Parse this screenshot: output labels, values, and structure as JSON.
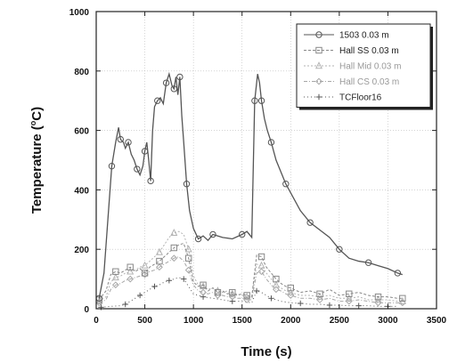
{
  "chart_data": {
    "type": "line",
    "xlabel": "Time (s)",
    "ylabel": "Temperature (",
    "ylabel_sup": "o",
    "ylabel_unit": "C)",
    "xlim": [
      0,
      3500
    ],
    "ylim": [
      0,
      1000
    ],
    "xticks": [
      0,
      500,
      1000,
      1500,
      2000,
      2500,
      3000,
      3500
    ],
    "yticks": [
      0,
      200,
      400,
      600,
      800,
      1000
    ],
    "grid": true,
    "legend_position": "top-right",
    "series": [
      {
        "name": "1503 0.03 m",
        "color": "#555555",
        "marker": "circle",
        "x": [
          30,
          80,
          120,
          160,
          200,
          230,
          250,
          280,
          300,
          330,
          360,
          390,
          420,
          450,
          480,
          500,
          520,
          540,
          560,
          580,
          600,
          630,
          660,
          690,
          720,
          750,
          780,
          800,
          820,
          840,
          860,
          880,
          900,
          930,
          960,
          1000,
          1050,
          1100,
          1150,
          1200,
          1300,
          1400,
          1500,
          1550,
          1600,
          1630,
          1660,
          1680,
          1700,
          1730,
          1760,
          1800,
          1850,
          1900,
          1950,
          2000,
          2100,
          2200,
          2300,
          2400,
          2500,
          2600,
          2700,
          2800,
          2900,
          3000,
          3100,
          3150
        ],
        "values": [
          35,
          120,
          300,
          480,
          560,
          610,
          570,
          560,
          540,
          560,
          520,
          500,
          470,
          450,
          480,
          530,
          560,
          500,
          430,
          600,
          680,
          700,
          710,
          690,
          760,
          790,
          750,
          740,
          780,
          720,
          780,
          650,
          560,
          420,
          330,
          270,
          235,
          245,
          230,
          250,
          240,
          235,
          250,
          260,
          240,
          700,
          790,
          760,
          700,
          640,
          600,
          560,
          500,
          460,
          420,
          390,
          330,
          290,
          265,
          240,
          200,
          170,
          160,
          155,
          145,
          135,
          120,
          115
        ]
      },
      {
        "name": "Hall SS 0.03 m",
        "color": "#888888",
        "marker": "square",
        "x": [
          30,
          100,
          150,
          200,
          250,
          300,
          350,
          400,
          450,
          500,
          550,
          600,
          650,
          700,
          750,
          800,
          850,
          900,
          950,
          1000,
          1050,
          1100,
          1150,
          1200,
          1250,
          1300,
          1350,
          1400,
          1450,
          1500,
          1550,
          1600,
          1650,
          1700,
          1750,
          1800,
          1850,
          1900,
          1950,
          2000,
          2100,
          2200,
          2300,
          2400,
          2500,
          2600,
          2700,
          2800,
          2900,
          3000,
          3100,
          3150
        ],
        "values": [
          30,
          60,
          115,
          125,
          120,
          130,
          140,
          125,
          135,
          120,
          140,
          150,
          160,
          175,
          190,
          205,
          215,
          220,
          170,
          90,
          75,
          80,
          60,
          70,
          55,
          60,
          50,
          55,
          45,
          50,
          45,
          40,
          180,
          175,
          140,
          120,
          100,
          85,
          75,
          70,
          55,
          60,
          50,
          65,
          45,
          50,
          55,
          45,
          40,
          40,
          35,
          35
        ]
      },
      {
        "name": "Hall Mid 0.03 m",
        "color": "#b3b3b3",
        "marker": "triangle",
        "x": [
          30,
          100,
          150,
          200,
          250,
          300,
          350,
          400,
          450,
          500,
          550,
          600,
          650,
          700,
          750,
          800,
          850,
          900,
          950,
          1000,
          1050,
          1100,
          1150,
          1200,
          1250,
          1300,
          1350,
          1400,
          1450,
          1500,
          1550,
          1600,
          1650,
          1700,
          1750,
          1800,
          1850,
          1900,
          1950,
          2000,
          2100,
          2200,
          2300,
          2400,
          2500,
          2600,
          2700,
          2800,
          2900,
          3000,
          3100,
          3150
        ],
        "values": [
          25,
          40,
          90,
          105,
          110,
          120,
          125,
          130,
          140,
          145,
          160,
          175,
          190,
          215,
          240,
          255,
          260,
          250,
          200,
          110,
          80,
          75,
          65,
          70,
          60,
          55,
          60,
          50,
          50,
          45,
          40,
          40,
          150,
          145,
          120,
          100,
          80,
          70,
          60,
          55,
          45,
          45,
          40,
          45,
          35,
          35,
          40,
          30,
          30,
          30,
          25,
          25
        ]
      },
      {
        "name": "Hall CS 0.03 m",
        "color": "#a6a6a6",
        "marker": "diamond",
        "x": [
          30,
          100,
          150,
          200,
          250,
          300,
          350,
          400,
          450,
          500,
          550,
          600,
          650,
          700,
          750,
          800,
          850,
          900,
          950,
          1000,
          1050,
          1100,
          1150,
          1200,
          1250,
          1300,
          1350,
          1400,
          1450,
          1500,
          1550,
          1600,
          1650,
          1700,
          1750,
          1800,
          1850,
          1900,
          1950,
          2000,
          2100,
          2200,
          2300,
          2400,
          2500,
          2600,
          2700,
          2800,
          2900,
          3000,
          3100,
          3150
        ],
        "values": [
          20,
          30,
          65,
          80,
          85,
          95,
          100,
          105,
          110,
          115,
          125,
          130,
          140,
          150,
          160,
          170,
          175,
          160,
          130,
          80,
          60,
          55,
          50,
          55,
          45,
          45,
          40,
          40,
          35,
          35,
          30,
          30,
          120,
          125,
          100,
          80,
          65,
          60,
          50,
          45,
          35,
          35,
          30,
          35,
          25,
          25,
          30,
          25,
          20,
          20,
          20,
          20
        ]
      },
      {
        "name": "TCFloor16",
        "color": "#555555",
        "marker": "plus",
        "x": [
          50,
          150,
          250,
          300,
          350,
          400,
          450,
          500,
          550,
          600,
          650,
          700,
          750,
          800,
          850,
          900,
          950,
          1000,
          1100,
          1200,
          1300,
          1400,
          1500,
          1600,
          1650,
          1700,
          1750,
          1800,
          1900,
          2000,
          2100,
          2200,
          2300,
          2400,
          2500,
          2600,
          2700,
          2800,
          2900,
          3000,
          3100
        ],
        "values": [
          5,
          8,
          10,
          15,
          25,
          35,
          45,
          55,
          65,
          75,
          80,
          90,
          95,
          100,
          105,
          100,
          75,
          50,
          40,
          35,
          30,
          25,
          25,
          20,
          60,
          55,
          45,
          35,
          25,
          20,
          18,
          15,
          15,
          12,
          12,
          10,
          10,
          10,
          8,
          8,
          8
        ]
      }
    ]
  }
}
